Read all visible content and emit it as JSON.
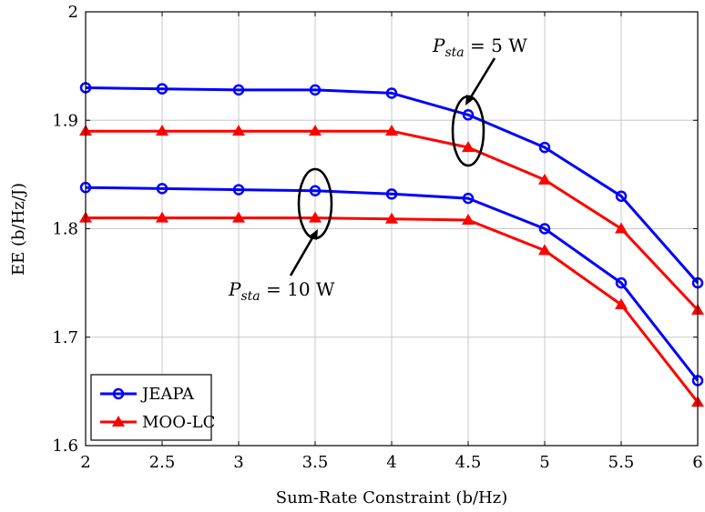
{
  "chart_data": {
    "type": "line",
    "title": "",
    "xlabel": "Sum-Rate Constraint (b/Hz)",
    "ylabel": "EE (b/Hz/J)",
    "xlim": [
      2,
      6
    ],
    "ylim": [
      1.6,
      2.0
    ],
    "xticks": [
      2,
      2.5,
      3,
      3.5,
      4,
      4.5,
      5,
      5.5,
      6
    ],
    "xtick_labels": [
      "2",
      "2.5",
      "3",
      "3.5",
      "4",
      "4.5",
      "5",
      "5.5",
      "6"
    ],
    "yticks": [
      1.6,
      1.7,
      1.8,
      1.9,
      2.0
    ],
    "ytick_labels": [
      "1.6",
      "1.7",
      "1.8",
      "1.9",
      "2"
    ],
    "grid": true,
    "legend": {
      "position": "bottom-left",
      "entries": [
        {
          "label": "JEAPA",
          "color": "#0000ff",
          "marker": "circle"
        },
        {
          "label": "MOO-LC",
          "color": "#ff0000",
          "marker": "triangle"
        }
      ]
    },
    "x": [
      2,
      2.5,
      3,
      3.5,
      4,
      4.5,
      5,
      5.5,
      6
    ],
    "series": [
      {
        "legend": "JEAPA",
        "color": "#0000ff",
        "marker": "circle",
        "values": [
          1.93,
          1.929,
          1.928,
          1.928,
          1.925,
          1.905,
          1.875,
          1.83,
          1.75
        ]
      },
      {
        "legend": "MOO-LC",
        "color": "#ff0000",
        "marker": "triangle",
        "values": [
          1.89,
          1.89,
          1.89,
          1.89,
          1.89,
          1.875,
          1.845,
          1.8,
          1.725
        ]
      },
      {
        "legend": "JEAPA",
        "color": "#0000ff",
        "marker": "circle",
        "values": [
          1.838,
          1.837,
          1.836,
          1.835,
          1.832,
          1.828,
          1.8,
          1.75,
          1.66
        ]
      },
      {
        "legend": "MOO-LC",
        "color": "#ff0000",
        "marker": "triangle",
        "values": [
          1.81,
          1.81,
          1.81,
          1.81,
          1.809,
          1.808,
          1.78,
          1.73,
          1.64
        ]
      }
    ],
    "annotations": [
      {
        "base": "P",
        "subscript": "sta",
        "rest": " = 5 W"
      },
      {
        "base": "P",
        "subscript": "sta",
        "rest": " = 10 W"
      }
    ]
  }
}
